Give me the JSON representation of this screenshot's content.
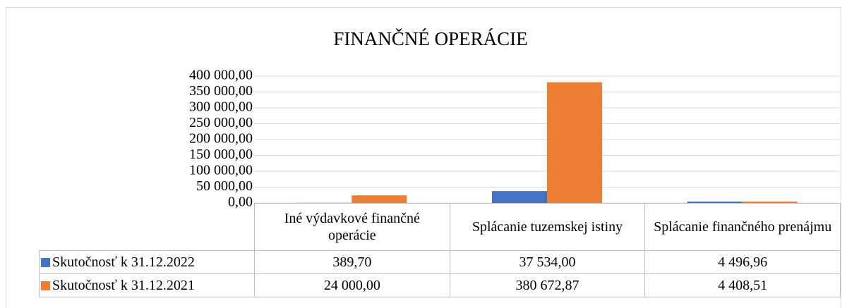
{
  "chart_data": {
    "type": "bar",
    "title": "FINANČNÉ OPERÁCIE",
    "categories": [
      "Iné výdavkové finančné operácie",
      "Splácanie tuzemskej istiny",
      "Splácanie finančného prenájmu"
    ],
    "series": [
      {
        "name": "Skutočnosť k 31.12.2022",
        "color": "#4472c4",
        "values": [
          389.7,
          37534.0,
          4496.96
        ],
        "value_labels": [
          "389,70",
          "37 534,00",
          "4 496,96"
        ]
      },
      {
        "name": "Skutočnosť k 31.12.2021",
        "color": "#ed7d31",
        "values": [
          24000.0,
          380672.87,
          4408.51
        ],
        "value_labels": [
          "24 000,00",
          "380 672,87",
          "4 408,51"
        ]
      }
    ],
    "ylim": [
      0,
      400000
    ],
    "yticks": [
      {
        "value": 0,
        "label": "0,00"
      },
      {
        "value": 50000,
        "label": "50 000,00"
      },
      {
        "value": 100000,
        "label": "100 000,00"
      },
      {
        "value": 150000,
        "label": "150 000,00"
      },
      {
        "value": 200000,
        "label": "200 000,00"
      },
      {
        "value": 250000,
        "label": "250 000,00"
      },
      {
        "value": 300000,
        "label": "300 000,00"
      },
      {
        "value": 350000,
        "label": "350 000,00"
      },
      {
        "value": 400000,
        "label": "400 000,00"
      }
    ],
    "grid": true
  }
}
